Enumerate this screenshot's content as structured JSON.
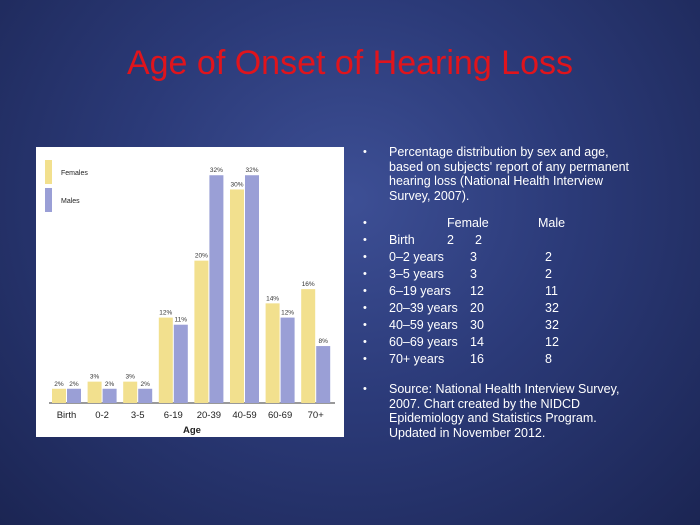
{
  "slide_title": "Age of Onset of Hearing Loss",
  "chart_data": {
    "type": "bar",
    "categories": [
      "Birth",
      "0-2",
      "3-5",
      "6-19",
      "20-39",
      "40-59",
      "60-69",
      "70+"
    ],
    "series": [
      {
        "name": "Females",
        "values": [
          2,
          3,
          3,
          12,
          20,
          30,
          14,
          16
        ],
        "color": "#f2e08e"
      },
      {
        "name": "Males",
        "values": [
          2,
          2,
          2,
          11,
          32,
          32,
          12,
          8
        ],
        "color": "#9a9fd6"
      }
    ],
    "data_labels": {
      "Females": [
        "2%",
        "3%",
        "3%",
        "12%",
        "20%",
        "30%",
        "14%",
        "16%"
      ],
      "Males": [
        "2%",
        "2%",
        "2%",
        "11%",
        "32%",
        "32%",
        "12%",
        "8%"
      ]
    },
    "xlabel": "Age",
    "ylabel": "",
    "ylim": [
      0,
      34
    ],
    "legend_position": "top-left",
    "grid": false
  },
  "bullets": {
    "intro": [
      "Percentage distribution by sex and age,",
      "based on subjects' report of any permanent",
      "hearing loss (National Health Interview",
      "Survey, 2007)."
    ],
    "table_header": {
      "female": "Female",
      "male": "Male"
    },
    "table_rows": [
      {
        "age": "Birth",
        "female": "2",
        "male": "2"
      },
      {
        "age": "0–2 years",
        "female": "3",
        "male": "2"
      },
      {
        "age": "3–5 years",
        "female": "3",
        "male": "2"
      },
      {
        "age": "6–19 years",
        "female": "12",
        "male": "11"
      },
      {
        "age": "20–39 years",
        "female": "20",
        "male": "32"
      },
      {
        "age": "40–59 years",
        "female": "30",
        "male": "32"
      },
      {
        "age": "60–69 years",
        "female": "14",
        "male": "12"
      },
      {
        "age": "70+ years",
        "female": "16",
        "male": "8"
      }
    ],
    "source": [
      "Source: National Health Interview Survey,",
      "2007. Chart created by the NIDCD",
      "Epidemiology and Statistics Program.",
      "Updated in November 2012."
    ]
  },
  "bullet_char": "•"
}
